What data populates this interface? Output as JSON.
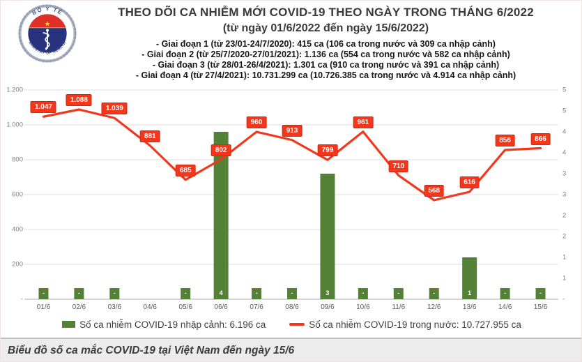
{
  "header": {
    "title": "THEO DÕI CA NHIỄM MỚI COVID-19 THEO NGÀY TRONG THÁNG 6/2022",
    "subtitle": "(từ ngày 01/6/2022 đến ngày 15/6/2022)",
    "phases": [
      "- Giai đoạn 1 (từ 23/01-24/7/2020): 415 ca (106 ca trong nước và 309 ca nhập cảnh)",
      "- Giai đoạn 2 (từ 25/7/2020-27/01/2021): 1.136 ca (554 ca trong nước và 582 ca nhập cảnh)",
      "- Giai đoạn 3 (từ 28/01-26/4/2021): 1.301 ca (910 ca trong nước và 391 ca nhập cảnh)",
      "- Giai đoạn 4 (từ 27/4/2021): 10.731.299 ca (10.726.385 ca trong nước và 4.914 ca nhập cảnh)"
    ],
    "logo": {
      "top_text": "BỘ Y TẾ",
      "bottom_text": "MINISTRY OF HEALTH",
      "star": "★"
    }
  },
  "chart_data": {
    "type": "combo bar+line",
    "categories": [
      "01/6",
      "02/6",
      "03/6",
      "04/6",
      "05/6",
      "06/6",
      "07/6",
      "08/6",
      "09/6",
      "10/6",
      "11/6",
      "12/6",
      "13/6",
      "14/6",
      "15/6"
    ],
    "series": [
      {
        "name": "Số ca nhiễm COVID-19 nhập cảnh",
        "type": "bar",
        "axis": "right",
        "color": "#538135",
        "values": [
          0,
          0,
          0,
          null,
          0,
          4,
          0,
          0,
          3,
          0,
          0,
          0,
          1,
          0,
          0
        ],
        "labels": [
          "-",
          "-",
          "-",
          "",
          "-",
          "4",
          "-",
          "-",
          "3",
          "-",
          "-",
          "-",
          "1",
          "-",
          "-"
        ]
      },
      {
        "name": "Số ca nhiễm COVID-19 trong nước",
        "type": "line",
        "axis": "left",
        "color": "#f2371d",
        "values": [
          1047,
          1088,
          1039,
          881,
          685,
          802,
          960,
          913,
          799,
          961,
          710,
          568,
          616,
          856,
          866
        ],
        "labels": [
          "1.047",
          "1.088",
          "1.039",
          "881",
          "685",
          "802",
          "960",
          "913",
          "799",
          "961",
          "710",
          "568",
          "616",
          "856",
          "866"
        ]
      }
    ],
    "left_axis": {
      "min": 0,
      "max": 1200,
      "tick_values": [
        1200,
        1000,
        800,
        600,
        400,
        200,
        0
      ],
      "tick_labels": [
        "1.200",
        "1.000",
        "800",
        "600",
        "400",
        "200",
        "-"
      ]
    },
    "right_axis": {
      "min": 0,
      "max": 5,
      "tick_labels": [
        "5",
        "5",
        "4",
        "4",
        "3",
        "3",
        "2",
        "2",
        "1",
        "1",
        "-"
      ]
    },
    "grid": true,
    "legend_position": "bottom",
    "legend": [
      {
        "label": "Số ca nhiễm COVID-19 nhập cảnh: 6.196 ca",
        "color": "#538135",
        "swatch": "square"
      },
      {
        "label": "Số ca nhiễm COVID-19 trong nước: 10.727.955 ca",
        "color": "#f2371d",
        "swatch": "line"
      }
    ]
  },
  "caption": "Biểu đồ số ca mắc COVID-19 tại Việt Nam đến ngày 15/6"
}
